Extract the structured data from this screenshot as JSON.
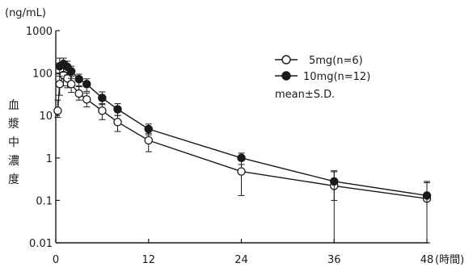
{
  "chart_data": {
    "type": "line",
    "y_unit": "(ng/mL)",
    "x_unit": "(時間)",
    "ylabel": "血漿中濃度",
    "xlabel": "",
    "yscale": "log",
    "ylim": [
      0.01,
      1000
    ],
    "xlim": [
      0,
      48
    ],
    "xticks": [
      0,
      12,
      24,
      36,
      48
    ],
    "xtick_labels": [
      "0",
      "12",
      "24",
      "36",
      "48"
    ],
    "yticks": [
      0.01,
      0.1,
      1,
      10,
      100,
      1000
    ],
    "ytick_labels": [
      "0.01",
      "0.1",
      "1",
      "10",
      "100",
      "1000"
    ],
    "grid": false,
    "legend_position": "top-right",
    "legend_note": "mean±S.D.",
    "series": [
      {
        "name": "5mg(n=6)",
        "marker": "open-circle",
        "color": "#1a1a1a",
        "x": [
          0.25,
          0.5,
          1,
          1.5,
          2,
          3,
          4,
          6,
          8,
          12,
          24,
          36,
          48
        ],
        "y": [
          13,
          55,
          90,
          75,
          55,
          33,
          24,
          13,
          7,
          2.6,
          0.48,
          0.22,
          0.11
        ],
        "err_low": [
          4,
          25,
          40,
          30,
          20,
          10,
          8,
          5,
          2.8,
          1.2,
          0.35,
          0.22,
          0.11
        ],
        "err_high": [
          10,
          40,
          60,
          45,
          30,
          15,
          10,
          6,
          3,
          1.2,
          0.6,
          0.25,
          0.15
        ]
      },
      {
        "name": "10mg(n=12)",
        "marker": "filled-circle",
        "color": "#1a1a1a",
        "x": [
          0.5,
          1,
          1.5,
          2,
          3,
          4,
          6,
          8,
          12,
          24,
          36,
          48
        ],
        "y": [
          145,
          165,
          140,
          110,
          72,
          55,
          26,
          14,
          4.8,
          1.0,
          0.28,
          0.13
        ],
        "err_low": [
          60,
          60,
          50,
          35,
          22,
          18,
          8,
          4,
          1.3,
          0.3,
          0.18,
          0.12
        ],
        "err_high": [
          80,
          60,
          50,
          35,
          22,
          18,
          10,
          5,
          1.5,
          0.3,
          0.22,
          0.15
        ]
      }
    ]
  }
}
